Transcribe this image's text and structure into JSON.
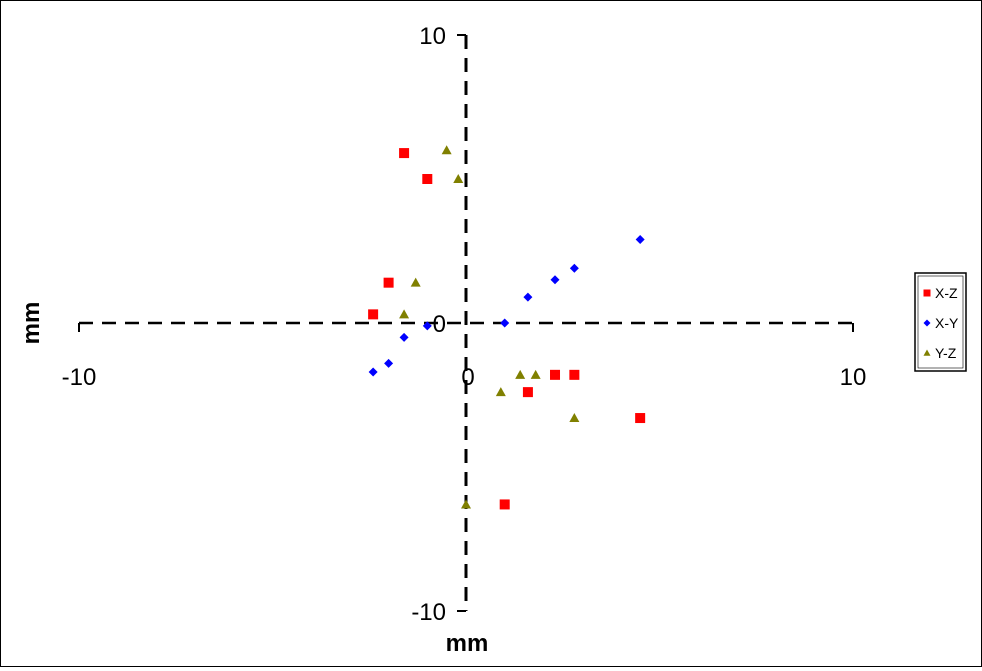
{
  "chart_data": {
    "type": "scatter",
    "xlabel": "mm",
    "ylabel": "mm",
    "xlim": [
      -10,
      10
    ],
    "ylim": [
      -10,
      10
    ],
    "x_ticks": [
      -10,
      0,
      10
    ],
    "y_ticks": [
      10,
      0,
      -10
    ],
    "grid": false,
    "legend_position": "right",
    "series": [
      {
        "name": "X-Z",
        "marker": "square",
        "color": "#ff0000",
        "points": [
          {
            "x": -1.6,
            "y": 5.9
          },
          {
            "x": -1.0,
            "y": 5.0
          },
          {
            "x": -2.0,
            "y": 1.4
          },
          {
            "x": -2.4,
            "y": 0.3
          },
          {
            "x": 2.3,
            "y": -1.8
          },
          {
            "x": 2.8,
            "y": -1.8
          },
          {
            "x": 1.6,
            "y": -2.4
          },
          {
            "x": 4.5,
            "y": -3.3
          },
          {
            "x": 1.0,
            "y": -6.3
          }
        ]
      },
      {
        "name": "X-Y",
        "marker": "diamond",
        "color": "#0000ff",
        "points": [
          {
            "x": 4.5,
            "y": 2.9
          },
          {
            "x": 2.8,
            "y": 1.9
          },
          {
            "x": 2.3,
            "y": 1.5
          },
          {
            "x": 1.6,
            "y": 0.9
          },
          {
            "x": 1.0,
            "y": 0.0
          },
          {
            "x": -1.0,
            "y": -0.1
          },
          {
            "x": -1.6,
            "y": -0.5
          },
          {
            "x": -2.0,
            "y": -1.4
          },
          {
            "x": -2.4,
            "y": -1.7
          }
        ]
      },
      {
        "name": "Y-Z",
        "marker": "triangle",
        "color": "#808000",
        "points": [
          {
            "x": -0.5,
            "y": 6.0
          },
          {
            "x": -0.2,
            "y": 5.0
          },
          {
            "x": -1.3,
            "y": 1.4
          },
          {
            "x": -1.6,
            "y": 0.3
          },
          {
            "x": 1.4,
            "y": -1.8
          },
          {
            "x": 1.8,
            "y": -1.8
          },
          {
            "x": 0.9,
            "y": -2.4
          },
          {
            "x": 2.8,
            "y": -3.3
          },
          {
            "x": 0.0,
            "y": -6.3
          }
        ]
      }
    ]
  }
}
